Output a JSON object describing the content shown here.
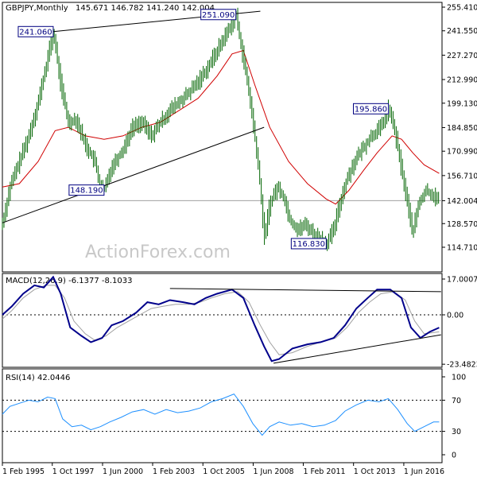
{
  "chart_data": [
    {
      "type": "bar",
      "title": "GBPJPY,Monthly",
      "ohlc_text": "145.671 146.782 141.240 142.004",
      "last_price": 142.004,
      "ylim": [
        110.0,
        260.0
      ],
      "y_ticks": [
        "255.410",
        "241.550",
        "227.270",
        "212.990",
        "199.130",
        "184.850",
        "170.990",
        "156.710",
        "142.004",
        "128.570",
        "114.710"
      ],
      "x": [
        "Feb 1995",
        "Oct 1997",
        "Jun 2000",
        "Feb 2003",
        "Oct 2005",
        "Jun 2008",
        "Feb 2011",
        "Oct 2013",
        "Jun 2016"
      ],
      "x_tick_labels": [
        "1 Feb 1995",
        "1 Oct 1997",
        "1 Jun 2000",
        "1 Feb 2003",
        "1 Oct 2005",
        "1 Jun 2008",
        "1 Feb 2011",
        "1 Oct 2013",
        "1 Jun 2016"
      ],
      "price_path": [
        [
          1995.1,
          128.6
        ],
        [
          1995.5,
          150
        ],
        [
          1996.0,
          165
        ],
        [
          1996.5,
          180
        ],
        [
          1997.0,
          200
        ],
        [
          1997.4,
          220
        ],
        [
          1997.8,
          241.06
        ],
        [
          1998.2,
          210
        ],
        [
          1998.6,
          188
        ],
        [
          1999.0,
          190
        ],
        [
          1999.5,
          175
        ],
        [
          2000.0,
          165
        ],
        [
          2000.3,
          150
        ],
        [
          2000.5,
          148.19
        ],
        [
          2000.9,
          162
        ],
        [
          2001.5,
          172
        ],
        [
          2002.0,
          185
        ],
        [
          2002.5,
          188
        ],
        [
          2003.0,
          180
        ],
        [
          2003.5,
          188
        ],
        [
          2004.0,
          195
        ],
        [
          2004.5,
          200
        ],
        [
          2005.0,
          205
        ],
        [
          2005.5,
          212
        ],
        [
          2006.0,
          220
        ],
        [
          2006.5,
          230
        ],
        [
          2007.0,
          240
        ],
        [
          2007.5,
          251.09
        ],
        [
          2007.9,
          225
        ],
        [
          2008.2,
          205
        ],
        [
          2008.5,
          180
        ],
        [
          2008.8,
          150
        ],
        [
          2009.0,
          120
        ],
        [
          2009.3,
          140
        ],
        [
          2009.7,
          150
        ],
        [
          2010.0,
          145
        ],
        [
          2010.4,
          130
        ],
        [
          2010.8,
          125
        ],
        [
          2011.2,
          128
        ],
        [
          2011.7,
          122
        ],
        [
          2012.0,
          120
        ],
        [
          2012.3,
          116.83
        ],
        [
          2012.7,
          125
        ],
        [
          2013.0,
          140
        ],
        [
          2013.4,
          155
        ],
        [
          2013.8,
          165
        ],
        [
          2014.2,
          172
        ],
        [
          2014.7,
          180
        ],
        [
          2015.2,
          185
        ],
        [
          2015.6,
          195.86
        ],
        [
          2015.9,
          185
        ],
        [
          2016.3,
          160
        ],
        [
          2016.7,
          135
        ],
        [
          2016.9,
          123
        ],
        [
          2017.2,
          140
        ],
        [
          2017.6,
          148
        ],
        [
          2018.0,
          145
        ],
        [
          2018.3,
          142
        ]
      ],
      "sma_path": [
        [
          1995.1,
          150
        ],
        [
          1996.0,
          152
        ],
        [
          1997.0,
          165
        ],
        [
          1997.9,
          183
        ],
        [
          1998.6,
          185
        ],
        [
          1999.5,
          180
        ],
        [
          2000.5,
          178
        ],
        [
          2001.5,
          180
        ],
        [
          2002.5,
          185
        ],
        [
          2003.5,
          188
        ],
        [
          2004.5,
          195
        ],
        [
          2005.5,
          202
        ],
        [
          2006.5,
          215
        ],
        [
          2007.3,
          228
        ],
        [
          2007.9,
          230
        ],
        [
          2008.5,
          210
        ],
        [
          2009.3,
          185
        ],
        [
          2010.3,
          165
        ],
        [
          2011.3,
          152
        ],
        [
          2012.3,
          143
        ],
        [
          2012.8,
          140
        ],
        [
          2013.5,
          148
        ],
        [
          2014.3,
          160
        ],
        [
          2015.0,
          170
        ],
        [
          2015.8,
          180
        ],
        [
          2016.3,
          178
        ],
        [
          2016.9,
          170
        ],
        [
          2017.5,
          163
        ],
        [
          2018.3,
          158
        ]
      ],
      "annotations": [
        {
          "text": "241.060",
          "x": 1997.8,
          "y": 241.06
        },
        {
          "text": "251.090",
          "x": 2007.5,
          "y": 251.09
        },
        {
          "text": "148.190",
          "x": 2000.5,
          "y": 148.19
        },
        {
          "text": "195.860",
          "x": 2015.6,
          "y": 195.86
        },
        {
          "text": "116.830",
          "x": 2012.3,
          "y": 116.83
        }
      ],
      "trendlines": [
        {
          "from": [
            1997.8,
            241.06
          ],
          "to": [
            2008.8,
            253.0
          ]
        },
        {
          "from": [
            1995.1,
            129.0
          ],
          "to": [
            2009.0,
            185.0
          ]
        }
      ],
      "watermark": "ActionForex.com"
    },
    {
      "type": "line",
      "title": "MACD(12,26,9) -6.1377 -8.1033",
      "ylim": [
        -25.0,
        19.0
      ],
      "y_ticks": [
        "17.0007",
        "0.00",
        "-23.4823"
      ],
      "macd_path": [
        [
          1995.1,
          0
        ],
        [
          1995.6,
          4
        ],
        [
          1996.2,
          10
        ],
        [
          1996.8,
          14
        ],
        [
          1997.3,
          13
        ],
        [
          1997.8,
          18
        ],
        [
          1998.2,
          10
        ],
        [
          1998.7,
          -6
        ],
        [
          1999.3,
          -10
        ],
        [
          1999.8,
          -13
        ],
        [
          2000.4,
          -11
        ],
        [
          2000.9,
          -5
        ],
        [
          2001.5,
          -3
        ],
        [
          2002.2,
          1
        ],
        [
          2002.8,
          6
        ],
        [
          2003.4,
          5
        ],
        [
          2004.0,
          7
        ],
        [
          2004.7,
          6
        ],
        [
          2005.3,
          5
        ],
        [
          2005.9,
          8
        ],
        [
          2006.5,
          10
        ],
        [
          2007.3,
          12
        ],
        [
          2007.9,
          8
        ],
        [
          2008.5,
          -5
        ],
        [
          2009.0,
          -15
        ],
        [
          2009.4,
          -22
        ],
        [
          2009.8,
          -21
        ],
        [
          2010.5,
          -16
        ],
        [
          2011.3,
          -14
        ],
        [
          2012.0,
          -13
        ],
        [
          2012.7,
          -11
        ],
        [
          2013.3,
          -5
        ],
        [
          2013.9,
          3
        ],
        [
          2014.5,
          8
        ],
        [
          2015.0,
          12
        ],
        [
          2015.7,
          12
        ],
        [
          2016.3,
          8
        ],
        [
          2016.8,
          -6
        ],
        [
          2017.3,
          -11
        ],
        [
          2017.8,
          -8.1
        ],
        [
          2018.3,
          -6.1
        ]
      ],
      "signal_path": [
        [
          1995.1,
          -2
        ],
        [
          1995.6,
          2
        ],
        [
          1996.2,
          8
        ],
        [
          1996.8,
          12
        ],
        [
          1997.4,
          14
        ],
        [
          1997.9,
          14
        ],
        [
          1998.4,
          8
        ],
        [
          1998.9,
          -3
        ],
        [
          1999.5,
          -9
        ],
        [
          2000.0,
          -12
        ],
        [
          2000.6,
          -10
        ],
        [
          2001.2,
          -6
        ],
        [
          2001.8,
          -3
        ],
        [
          2002.4,
          0
        ],
        [
          2003.0,
          3
        ],
        [
          2003.6,
          4
        ],
        [
          2004.3,
          5
        ],
        [
          2005.0,
          5
        ],
        [
          2005.6,
          6
        ],
        [
          2006.2,
          8
        ],
        [
          2006.9,
          10
        ],
        [
          2007.6,
          11
        ],
        [
          2008.2,
          6
        ],
        [
          2008.8,
          -5
        ],
        [
          2009.3,
          -13
        ],
        [
          2009.8,
          -19
        ],
        [
          2010.5,
          -18
        ],
        [
          2011.3,
          -15
        ],
        [
          2012.0,
          -13
        ],
        [
          2012.8,
          -11
        ],
        [
          2013.4,
          -6
        ],
        [
          2014.0,
          1
        ],
        [
          2014.6,
          6
        ],
        [
          2015.2,
          10
        ],
        [
          2015.9,
          11
        ],
        [
          2016.5,
          7
        ],
        [
          2017.0,
          -3
        ],
        [
          2017.5,
          -9
        ],
        [
          2018.3,
          -8.1
        ]
      ],
      "trendlines": [
        {
          "from": [
            2004.0,
            12.5
          ],
          "to": [
            2018.4,
            11.0
          ]
        },
        {
          "from": [
            2009.5,
            -23.0
          ],
          "to": [
            2018.4,
            -9.5
          ]
        }
      ]
    },
    {
      "type": "line",
      "title": "RSI(14) 42.0446",
      "ylim": [
        0,
        100
      ],
      "y_ticks": [
        "100",
        "70",
        "30",
        "0"
      ],
      "rsi_path": [
        [
          1995.1,
          52
        ],
        [
          1995.5,
          62
        ],
        [
          1996.0,
          66
        ],
        [
          1996.5,
          70
        ],
        [
          1997.0,
          68
        ],
        [
          1997.5,
          74
        ],
        [
          1997.9,
          72
        ],
        [
          1998.3,
          46
        ],
        [
          1998.8,
          36
        ],
        [
          1999.3,
          38
        ],
        [
          1999.8,
          32
        ],
        [
          2000.3,
          36
        ],
        [
          2000.8,
          42
        ],
        [
          2001.4,
          48
        ],
        [
          2002.0,
          55
        ],
        [
          2002.6,
          58
        ],
        [
          2003.2,
          52
        ],
        [
          2003.8,
          58
        ],
        [
          2004.4,
          54
        ],
        [
          2005.0,
          56
        ],
        [
          2005.6,
          60
        ],
        [
          2006.2,
          68
        ],
        [
          2006.8,
          72
        ],
        [
          2007.4,
          78
        ],
        [
          2007.9,
          62
        ],
        [
          2008.4,
          40
        ],
        [
          2008.9,
          25
        ],
        [
          2009.3,
          36
        ],
        [
          2009.8,
          42
        ],
        [
          2010.4,
          38
        ],
        [
          2011.0,
          40
        ],
        [
          2011.6,
          36
        ],
        [
          2012.2,
          38
        ],
        [
          2012.8,
          44
        ],
        [
          2013.3,
          56
        ],
        [
          2013.9,
          64
        ],
        [
          2014.5,
          70
        ],
        [
          2015.1,
          68
        ],
        [
          2015.6,
          72
        ],
        [
          2016.1,
          58
        ],
        [
          2016.6,
          40
        ],
        [
          2017.0,
          30
        ],
        [
          2017.5,
          36
        ],
        [
          2018.0,
          42
        ],
        [
          2018.3,
          42
        ]
      ],
      "levels": [
        70,
        30
      ]
    }
  ]
}
